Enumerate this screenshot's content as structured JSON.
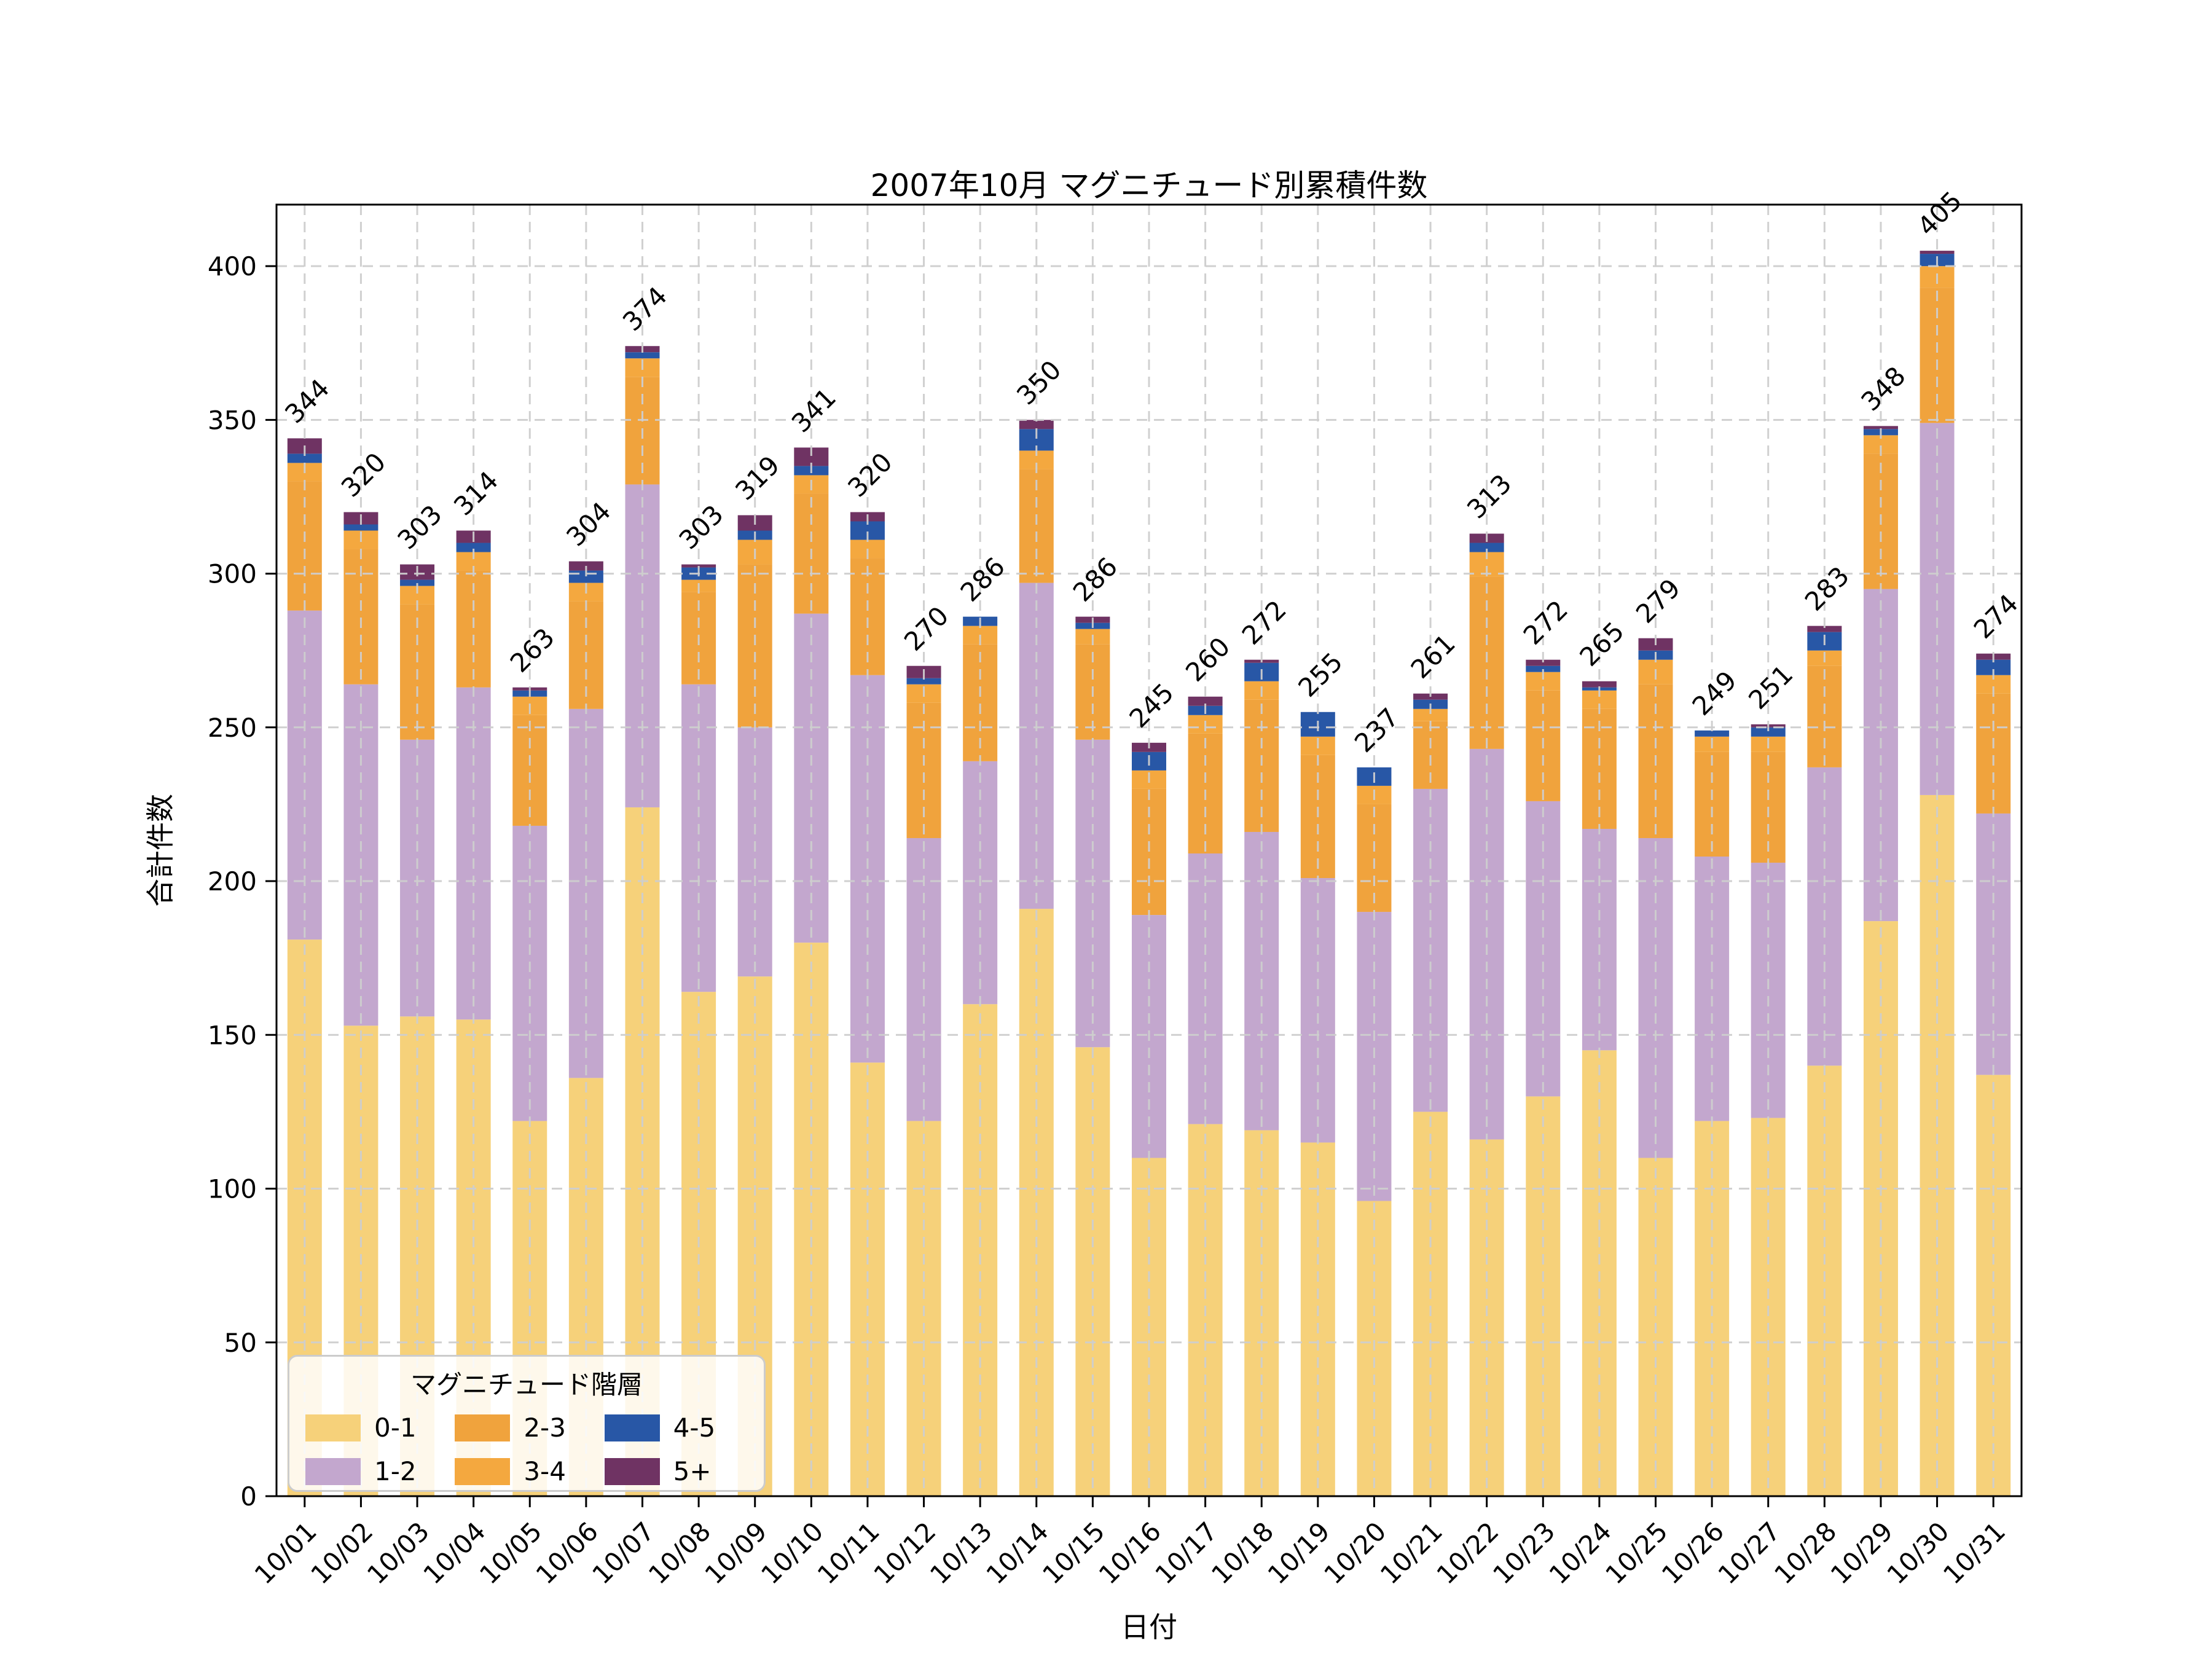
{
  "title": "2007年10月 マグニチュード別累積件数",
  "axes": {
    "xlabel": "日付",
    "ylabel": "合計件数"
  },
  "legend": {
    "title": "マグニチュード階層",
    "items": [
      "0-1",
      "1-2",
      "2-3",
      "3-4",
      "4-5",
      "5+"
    ]
  },
  "colors": {
    "grid": "#cdcdcd",
    "axis": "#000000",
    "background": "#ffffff"
  },
  "chart_data": {
    "type": "bar",
    "stacked": true,
    "title": "2007年10月 マグニチュード別累積件数",
    "xlabel": "日付",
    "ylabel": "合計件数",
    "categories": [
      "10/01",
      "10/02",
      "10/03",
      "10/04",
      "10/05",
      "10/06",
      "10/07",
      "10/08",
      "10/09",
      "10/10",
      "10/11",
      "10/12",
      "10/13",
      "10/14",
      "10/15",
      "10/16",
      "10/17",
      "10/18",
      "10/19",
      "10/20",
      "10/21",
      "10/22",
      "10/23",
      "10/24",
      "10/25",
      "10/26",
      "10/27",
      "10/28",
      "10/29",
      "10/30",
      "10/31"
    ],
    "series": [
      {
        "name": "0-1",
        "color": "#F6D17A",
        "values": [
          181,
          153,
          156,
          155,
          122,
          136,
          224,
          164,
          169,
          180,
          141,
          122,
          160,
          191,
          146,
          110,
          121,
          119,
          115,
          96,
          125,
          116,
          130,
          145,
          110,
          122,
          123,
          140,
          187,
          228,
          137
        ]
      },
      {
        "name": "1-2",
        "color": "#C3A7CE",
        "values": [
          107,
          111,
          90,
          108,
          96,
          120,
          105,
          100,
          81,
          107,
          126,
          92,
          79,
          106,
          100,
          79,
          88,
          97,
          86,
          94,
          105,
          127,
          96,
          72,
          104,
          86,
          83,
          97,
          108,
          121,
          85
        ]
      },
      {
        "name": "2-3",
        "color": "#F0A33D",
        "values": [
          42,
          44,
          44,
          38,
          36,
          35,
          35,
          30,
          53,
          39,
          38,
          44,
          38,
          37,
          31,
          41,
          39,
          43,
          40,
          35,
          22,
          56,
          36,
          39,
          50,
          34,
          36,
          33,
          44,
          44,
          39
        ]
      },
      {
        "name": "3-4",
        "color": "#F4A83F",
        "values": [
          6,
          6,
          6,
          6,
          6,
          6,
          6,
          4,
          8,
          6,
          6,
          6,
          6,
          6,
          5,
          6,
          6,
          6,
          6,
          6,
          4,
          8,
          6,
          6,
          8,
          5,
          5,
          5,
          6,
          7,
          6
        ]
      },
      {
        "name": "4-5",
        "color": "#2857A6",
        "values": [
          3,
          2,
          2,
          3,
          2,
          4,
          2,
          4,
          3,
          3,
          6,
          2,
          3,
          7,
          2,
          6,
          3,
          6,
          8,
          6,
          3,
          3,
          2,
          1,
          3,
          2,
          3,
          6,
          2,
          4,
          5
        ]
      },
      {
        "name": "5+",
        "color": "#6F3363",
        "values": [
          5,
          4,
          5,
          4,
          1,
          3,
          2,
          1,
          5,
          6,
          3,
          4,
          0,
          3,
          2,
          3,
          3,
          1,
          0,
          0,
          2,
          3,
          2,
          2,
          4,
          0,
          1,
          2,
          1,
          1,
          2
        ]
      }
    ],
    "totals": [
      344,
      320,
      303,
      314,
      263,
      304,
      374,
      303,
      319,
      341,
      320,
      270,
      286,
      350,
      286,
      245,
      260,
      272,
      255,
      237,
      261,
      313,
      272,
      265,
      279,
      249,
      251,
      283,
      348,
      405,
      274
    ],
    "ylim": [
      0,
      420
    ],
    "yticks": [
      0,
      50,
      100,
      150,
      200,
      250,
      300,
      350,
      400
    ],
    "grid": "dashed light-gray horizontal and vertical gridlines drawn over bars",
    "legend_position": "lower left",
    "legend_title": "マグニチュード階層",
    "bar_label_rotation_deg": 45,
    "x_tick_rotation_deg": 45
  }
}
